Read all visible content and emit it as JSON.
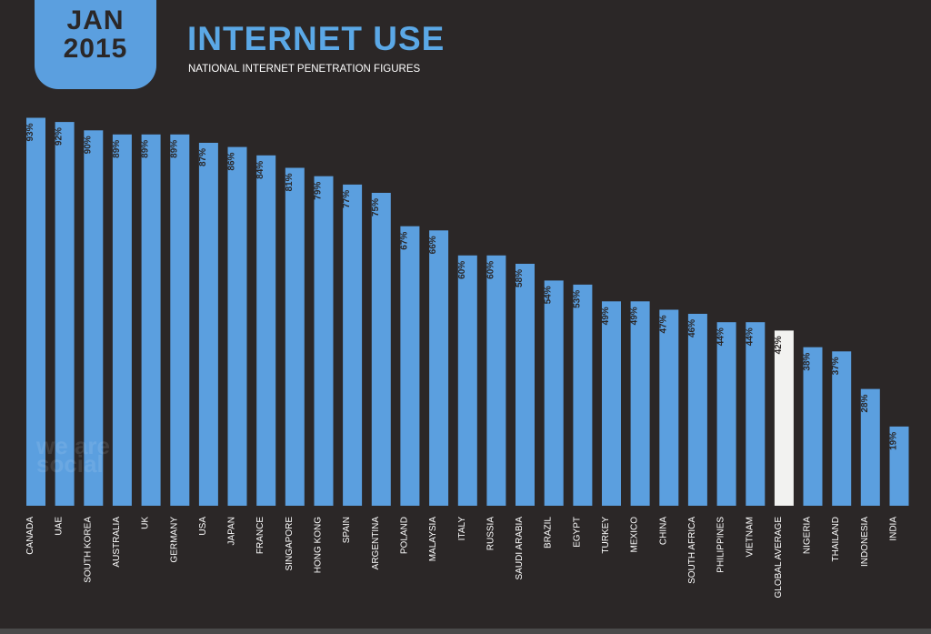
{
  "header": {
    "month": "JAN",
    "year": "2015",
    "title": "INTERNET USE",
    "subtitle": "NATIONAL INTERNET PENETRATION FIGURES"
  },
  "watermark": "we are social",
  "colors": {
    "background": "#2b2727",
    "bar": "#5b9fdf",
    "highlight_bar": "#f2f2f0",
    "title": "#5ba8e6"
  },
  "chart_data": {
    "type": "bar",
    "title": "INTERNET USE",
    "subtitle": "NATIONAL INTERNET PENETRATION FIGURES",
    "xlabel": "",
    "ylabel": "",
    "ylim": [
      0,
      100
    ],
    "categories": [
      "CANADA",
      "UAE",
      "SOUTH KOREA",
      "AUSTRALIA",
      "UK",
      "GERMANY",
      "USA",
      "JAPAN",
      "FRANCE",
      "SINGAPORE",
      "HONG KONG",
      "SPAIN",
      "ARGENTINA",
      "POLAND",
      "MALAYSIA",
      "ITALY",
      "RUSSIA",
      "SAUDI ARABIA",
      "BRAZIL",
      "EGYPT",
      "TURKEY",
      "MEXICO",
      "CHINA",
      "SOUTH AFRICA",
      "PHILIPPINES",
      "VIETNAM",
      "GLOBAL AVERAGE",
      "NIGERIA",
      "THAILAND",
      "INDONESIA",
      "INDIA"
    ],
    "values": [
      93,
      92,
      90,
      89,
      89,
      89,
      87,
      86,
      84,
      81,
      79,
      77,
      75,
      67,
      66,
      60,
      60,
      58,
      54,
      53,
      49,
      49,
      47,
      46,
      44,
      44,
      42,
      38,
      37,
      28,
      19
    ],
    "labels": [
      "93%",
      "92%",
      "90%",
      "89%",
      "89%",
      "89%",
      "87%",
      "86%",
      "84%",
      "81%",
      "79%",
      "77%",
      "75%",
      "67%",
      "66%",
      "60%",
      "60%",
      "58%",
      "54%",
      "53%",
      "49%",
      "49%",
      "47%",
      "46%",
      "44%",
      "44%",
      "42%",
      "38%",
      "37%",
      "28%",
      "19%"
    ],
    "highlight": "GLOBAL AVERAGE"
  }
}
